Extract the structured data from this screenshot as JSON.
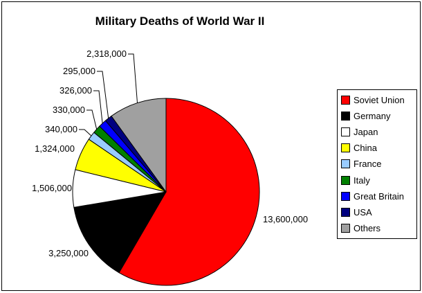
{
  "chart_data": {
    "type": "pie",
    "title": "Military Deaths of World War II",
    "total": 23289000,
    "start_angle_deg": 0,
    "direction": "clockwise",
    "legend_position": "right",
    "slices": [
      {
        "name": "Soviet Union",
        "value": 13600000,
        "label": "13,600,000",
        "color": "#FF0000"
      },
      {
        "name": "Germany",
        "value": 3250000,
        "label": "3,250,000",
        "color": "#000000"
      },
      {
        "name": "Japan",
        "value": 1506000,
        "label": "1,506,000",
        "color": "#FFFFFF"
      },
      {
        "name": "China",
        "value": 1324000,
        "label": "1,324,000",
        "color": "#FFFF00"
      },
      {
        "name": "France",
        "value": 340000,
        "label": "340,000",
        "color": "#99CCFF"
      },
      {
        "name": "Italy",
        "value": 330000,
        "label": "330,000",
        "color": "#008000"
      },
      {
        "name": "Great Britain",
        "value": 326000,
        "label": "326,000",
        "color": "#0000FF"
      },
      {
        "name": "USA",
        "value": 295000,
        "label": "295,000",
        "color": "#000080"
      },
      {
        "name": "Others",
        "value": 2318000,
        "label": "2,318,000",
        "color": "#A0A0A0"
      }
    ]
  }
}
